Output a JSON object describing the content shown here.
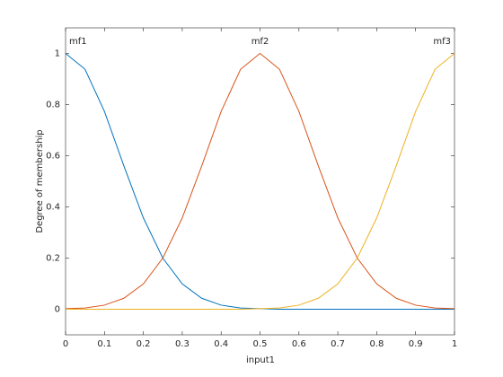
{
  "chart_data": {
    "type": "line",
    "x_label": "input1",
    "y_label": "Degree of membership",
    "x": [
      0,
      0.05,
      0.1,
      0.15,
      0.2,
      0.25,
      0.3,
      0.35,
      0.4,
      0.45,
      0.5,
      0.55,
      0.6,
      0.65,
      0.7,
      0.75,
      0.8,
      0.85,
      0.9,
      0.95,
      1
    ],
    "series": [
      {
        "name": "mf1",
        "color": "#0072bd",
        "values": [
          1,
          0.938,
          0.773,
          0.56,
          0.357,
          0.2,
          0.099,
          0.043,
          0.016,
          0.005,
          0.002,
          0,
          0,
          0,
          0,
          0,
          0,
          0,
          0,
          0,
          0
        ]
      },
      {
        "name": "mf2",
        "color": "#d95319",
        "values": [
          0.002,
          0.005,
          0.016,
          0.043,
          0.099,
          0.2,
          0.357,
          0.56,
          0.773,
          0.938,
          1,
          0.938,
          0.773,
          0.56,
          0.357,
          0.2,
          0.099,
          0.043,
          0.016,
          0.005,
          0.002
        ]
      },
      {
        "name": "mf3",
        "color": "#edb120",
        "values": [
          0,
          0,
          0,
          0,
          0,
          0,
          0,
          0,
          0,
          0,
          0.002,
          0.005,
          0.016,
          0.043,
          0.099,
          0.2,
          0.357,
          0.56,
          0.773,
          0.938,
          1
        ]
      }
    ],
    "xlim": [
      0,
      1
    ],
    "ylim": [
      -0.1,
      1.1
    ],
    "xticks": [
      0,
      0.1,
      0.2,
      0.3,
      0.4,
      0.5,
      0.6,
      0.7,
      0.8,
      0.9,
      1
    ],
    "yticks": [
      0,
      0.2,
      0.4,
      0.6,
      0.8,
      1
    ]
  }
}
